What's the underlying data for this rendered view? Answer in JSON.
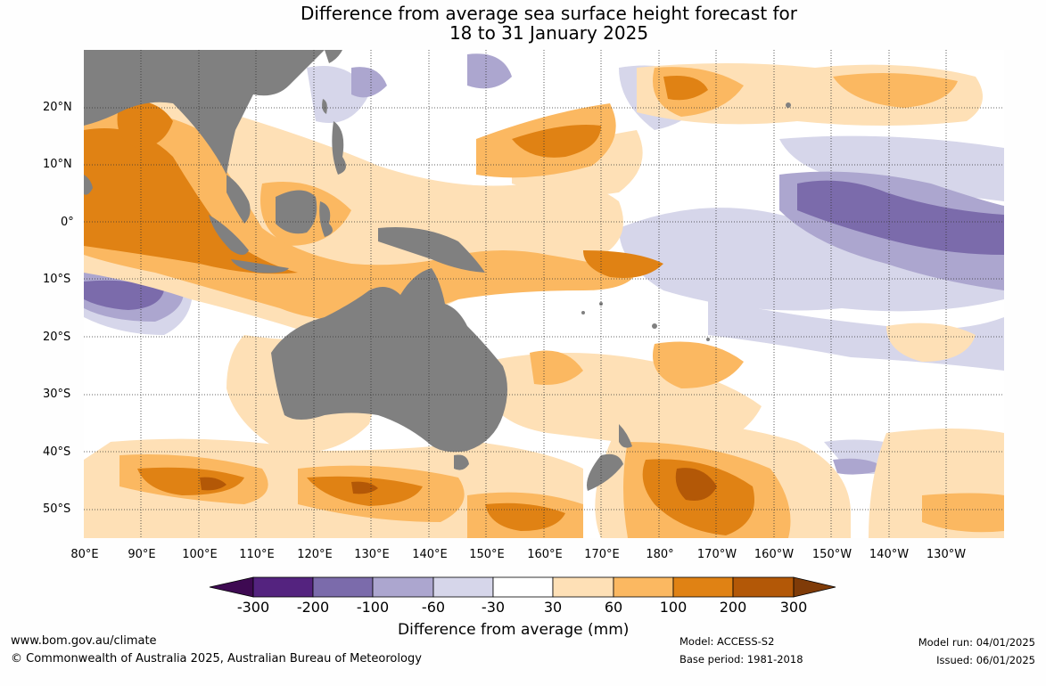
{
  "header": {
    "title_line1": "Difference from average sea surface height forecast for",
    "title_line2": "18 to 31 January 2025"
  },
  "map": {
    "latitude_labels": [
      "20°N",
      "10°N",
      "0°",
      "10°S",
      "20°S",
      "30°S",
      "40°S",
      "50°S"
    ],
    "longitude_labels": [
      "80°E",
      "90°E",
      "100°E",
      "110°E",
      "120°E",
      "130°E",
      "140°E",
      "150°E",
      "160°E",
      "170°E",
      "180°",
      "170°W",
      "160°W",
      "150°W",
      "140°W",
      "130°W"
    ],
    "land_color": "#808080",
    "ocean_neutral_color": "#ffffff",
    "gridlines": "dotted"
  },
  "legend": {
    "tick_labels": [
      "-300",
      "-200",
      "-100",
      "-60",
      "-30",
      "30",
      "60",
      "100",
      "200",
      "300"
    ],
    "title": "Difference from average (mm)",
    "colors": [
      "#3e0a52",
      "#54237f",
      "#7b6bab",
      "#aca6cf",
      "#d6d6ea",
      "#ffffff",
      "#fee0b6",
      "#fbb861",
      "#e08214",
      "#b35807",
      "#7f3b08"
    ]
  },
  "footer": {
    "website": "www.bom.gov.au/climate",
    "copyright": "© Commonwealth of Australia 2025, Australian Bureau of Meteorology",
    "model": "Model: ACCESS-S2",
    "base_period": "Base period: 1981-2018",
    "model_run": "Model run: 04/01/2025",
    "issued": "Issued: 06/01/2025"
  }
}
